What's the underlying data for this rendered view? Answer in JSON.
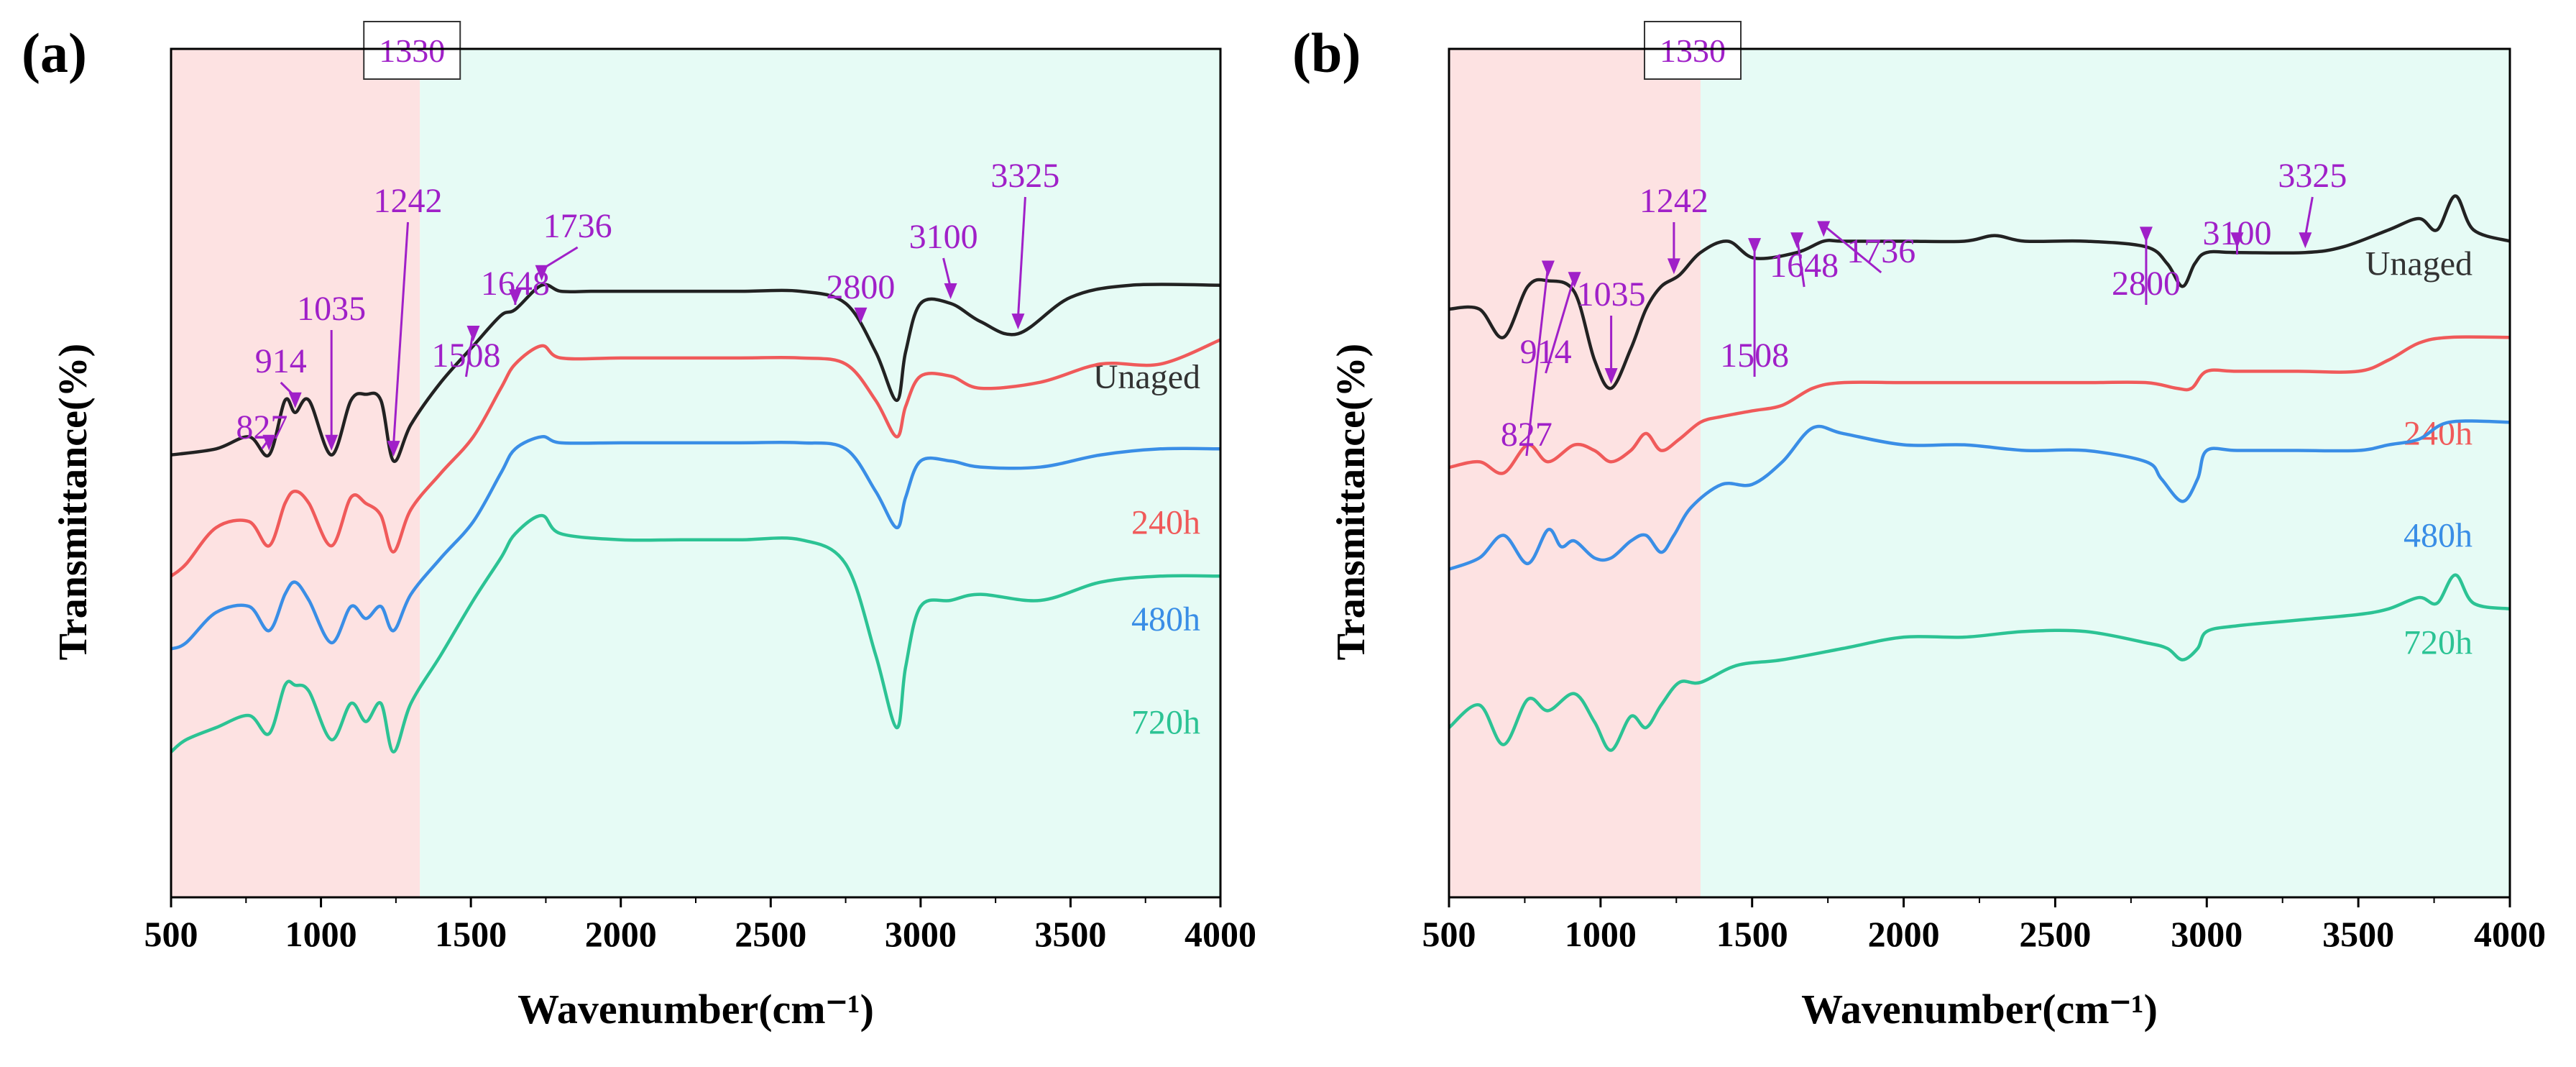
{
  "figure": {
    "colors": {
      "low_region": "#fde2e2",
      "high_region": "#e6fbf5",
      "annotation": "#a020c8",
      "axis": "#000000"
    }
  },
  "chart_data": [
    {
      "panel": "(a)",
      "type": "line",
      "xlabel": "Wavenumber(cm⁻¹)",
      "ylabel": "Transmittance(%)",
      "xlim": [
        500,
        4000
      ],
      "xticks": [
        500,
        1000,
        1500,
        2000,
        2500,
        3000,
        3500,
        4000
      ],
      "y_ticks_shown": false,
      "grid": false,
      "divider_label": "1330",
      "divider_x": 1330,
      "peak_annotations": [
        {
          "label": "827",
          "x": 827
        },
        {
          "label": "914",
          "x": 914
        },
        {
          "label": "1035",
          "x": 1035
        },
        {
          "label": "1242",
          "x": 1242
        },
        {
          "label": "1508",
          "x": 1508
        },
        {
          "label": "1648",
          "x": 1648
        },
        {
          "label": "1736",
          "x": 1736
        },
        {
          "label": "2800",
          "x": 2800
        },
        {
          "label": "3100",
          "x": 3100
        },
        {
          "label": "3325",
          "x": 3325
        }
      ],
      "series": [
        {
          "name": "Unaged",
          "color": "#222222",
          "x": [
            500,
            650,
            760,
            827,
            880,
            914,
            960,
            1035,
            1100,
            1150,
            1200,
            1242,
            1300,
            1400,
            1508,
            1600,
            1648,
            1736,
            1800,
            1900,
            2000,
            2200,
            2400,
            2600,
            2750,
            2850,
            2920,
            2950,
            3000,
            3100,
            3200,
            3325,
            3500,
            3700,
            4000
          ],
          "y": [
            -17,
            -16,
            -14,
            -17,
            -8,
            -10,
            -8,
            -17,
            -8,
            -7,
            -8,
            -18,
            -12,
            -5,
            1,
            6,
            7,
            11,
            10,
            10,
            10,
            10,
            10,
            10,
            8,
            0,
            -8,
            0,
            8,
            8,
            5,
            3,
            9,
            11,
            11
          ]
        },
        {
          "name": "240h",
          "color": "#f05a5a",
          "x": [
            500,
            550,
            650,
            760,
            827,
            880,
            914,
            960,
            1035,
            1100,
            1150,
            1200,
            1242,
            1300,
            1400,
            1508,
            1600,
            1648,
            1736,
            1800,
            2000,
            2200,
            2400,
            2600,
            2750,
            2850,
            2920,
            2950,
            3000,
            3100,
            3200,
            3400,
            3600,
            3800,
            4000
          ],
          "y": [
            -37,
            -35,
            -29,
            -28,
            -32,
            -25,
            -23,
            -25,
            -32,
            -24,
            -25,
            -27,
            -33,
            -26,
            -20,
            -14,
            -6,
            -2,
            1,
            -1,
            -1,
            -1,
            -1,
            -1,
            -2,
            -8,
            -14,
            -9,
            -4,
            -4,
            -6,
            -5,
            -2,
            -2,
            2
          ]
        },
        {
          "name": "480h",
          "color": "#3a8ee6",
          "x": [
            500,
            550,
            650,
            760,
            827,
            880,
            914,
            960,
            1035,
            1100,
            1150,
            1200,
            1242,
            1300,
            1400,
            1508,
            1600,
            1648,
            1736,
            1800,
            2000,
            2200,
            2400,
            2600,
            2750,
            2850,
            2920,
            2950,
            3000,
            3100,
            3200,
            3400,
            3600,
            3800,
            4000
          ],
          "y": [
            -49,
            -48,
            -43,
            -42,
            -46,
            -40,
            -38,
            -41,
            -48,
            -42,
            -44,
            -42,
            -46,
            -40,
            -34,
            -28,
            -20,
            -16,
            -14,
            -15,
            -15,
            -15,
            -15,
            -15,
            -16,
            -23,
            -29,
            -24,
            -18,
            -18,
            -19,
            -19,
            -17,
            -16,
            -16
          ]
        },
        {
          "name": "720h",
          "color": "#2cc394",
          "x": [
            500,
            550,
            650,
            760,
            827,
            880,
            914,
            960,
            1035,
            1100,
            1150,
            1200,
            1242,
            1300,
            1400,
            1508,
            1600,
            1648,
            1736,
            1800,
            2000,
            2200,
            2400,
            2600,
            2750,
            2850,
            2920,
            2950,
            3000,
            3100,
            3200,
            3400,
            3600,
            3800,
            4000
          ],
          "y": [
            -66,
            -64,
            -62,
            -60,
            -63,
            -55,
            -55,
            -56,
            -64,
            -58,
            -61,
            -58,
            -66,
            -58,
            -50,
            -41,
            -34,
            -30,
            -27,
            -30,
            -31,
            -31,
            -31,
            -31,
            -35,
            -50,
            -62,
            -52,
            -42,
            -41,
            -40,
            -41,
            -38,
            -37,
            -37
          ]
        }
      ]
    },
    {
      "panel": "(b)",
      "type": "line",
      "xlabel": "Wavenumber(cm⁻¹)",
      "ylabel": "Transmittance(%)",
      "xlim": [
        500,
        4000
      ],
      "xticks": [
        500,
        1000,
        1500,
        2000,
        2500,
        3000,
        3500,
        4000
      ],
      "y_ticks_shown": false,
      "grid": false,
      "divider_label": "1330",
      "divider_x": 1330,
      "peak_annotations": [
        {
          "label": "827",
          "x": 827
        },
        {
          "label": "914",
          "x": 914
        },
        {
          "label": "1035",
          "x": 1035
        },
        {
          "label": "1242",
          "x": 1242
        },
        {
          "label": "1508",
          "x": 1508
        },
        {
          "label": "1648",
          "x": 1648
        },
        {
          "label": "1736",
          "x": 1736
        },
        {
          "label": "2800",
          "x": 2800
        },
        {
          "label": "3100",
          "x": 3100
        },
        {
          "label": "3325",
          "x": 3325
        }
      ],
      "series": [
        {
          "name": "Unaged",
          "color": "#222222",
          "x": [
            500,
            600,
            680,
            760,
            827,
            914,
            980,
            1035,
            1100,
            1150,
            1200,
            1260,
            1330,
            1420,
            1508,
            1648,
            1736,
            1800,
            2000,
            2200,
            2300,
            2400,
            2600,
            2800,
            2870,
            2920,
            2960,
            3000,
            3100,
            3325,
            3450,
            3600,
            3700,
            3760,
            3820,
            3880,
            4000
          ],
          "y": [
            -6,
            -6,
            -11,
            -2,
            -1,
            -3,
            -15,
            -20,
            -13,
            -6,
            -2,
            0,
            4,
            6,
            3,
            4,
            6,
            6,
            6,
            6,
            7,
            6,
            6,
            5,
            2,
            -2,
            2,
            4,
            4,
            4,
            5,
            8,
            10,
            8,
            14,
            8,
            6
          ]
        },
        {
          "name": "240h",
          "color": "#f05a5a",
          "x": [
            500,
            600,
            680,
            760,
            827,
            914,
            980,
            1035,
            1100,
            1150,
            1200,
            1260,
            1330,
            1400,
            1500,
            1600,
            1700,
            1800,
            2000,
            2200,
            2400,
            2600,
            2800,
            2900,
            2950,
            3000,
            3100,
            3300,
            3500,
            3600,
            3700,
            3800,
            4000
          ],
          "y": [
            -34,
            -33,
            -35,
            -30,
            -33,
            -30,
            -31,
            -33,
            -31,
            -28,
            -31,
            -29,
            -26,
            -25,
            -24,
            -23,
            -20,
            -19,
            -19,
            -19,
            -19,
            -19,
            -19,
            -20,
            -20,
            -17,
            -17,
            -17,
            -17,
            -15,
            -12,
            -11,
            -11
          ]
        },
        {
          "name": "480h",
          "color": "#3a8ee6",
          "x": [
            500,
            600,
            680,
            760,
            827,
            870,
            914,
            980,
            1035,
            1100,
            1150,
            1200,
            1242,
            1300,
            1400,
            1500,
            1600,
            1700,
            1800,
            2000,
            2200,
            2400,
            2600,
            2800,
            2850,
            2920,
            2970,
            3000,
            3100,
            3300,
            3500,
            3600,
            3700,
            3800,
            4000
          ],
          "y": [
            -52,
            -50,
            -46,
            -51,
            -45,
            -48,
            -47,
            -50,
            -50,
            -47,
            -46,
            -49,
            -46,
            -41,
            -37,
            -37,
            -33,
            -27,
            -28,
            -30,
            -30,
            -31,
            -31,
            -33,
            -36,
            -40,
            -36,
            -31,
            -31,
            -31,
            -31,
            -30,
            -29,
            -26,
            -26
          ]
        },
        {
          "name": "720h",
          "color": "#2cc394",
          "x": [
            500,
            600,
            680,
            760,
            827,
            914,
            980,
            1035,
            1100,
            1150,
            1200,
            1260,
            1330,
            1450,
            1600,
            1800,
            2000,
            2200,
            2400,
            2600,
            2800,
            2870,
            2920,
            2970,
            3000,
            3100,
            3300,
            3500,
            3600,
            3700,
            3760,
            3820,
            3880,
            4000
          ],
          "y": [
            -80,
            -76,
            -83,
            -75,
            -77,
            -74,
            -79,
            -84,
            -78,
            -80,
            -76,
            -72,
            -72,
            -69,
            -68,
            -66,
            -64,
            -64,
            -63,
            -63,
            -65,
            -66,
            -68,
            -66,
            -63,
            -62,
            -61,
            -60,
            -59,
            -57,
            -58,
            -53,
            -58,
            -59
          ]
        }
      ]
    }
  ]
}
